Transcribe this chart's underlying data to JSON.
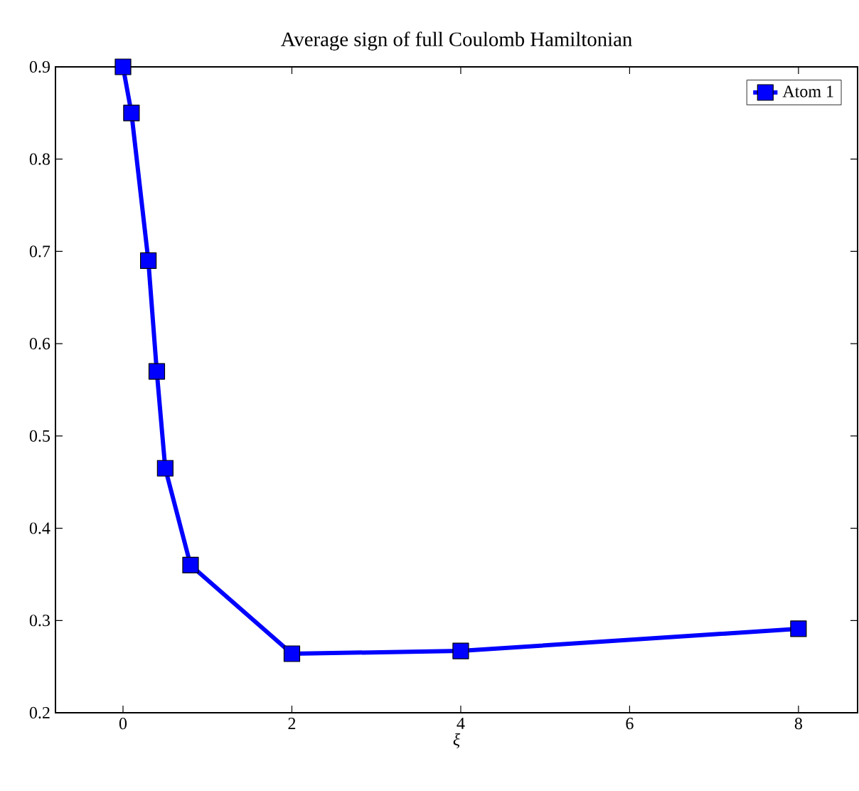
{
  "chart_data": {
    "type": "line",
    "title": "Average sign of full Coulomb Hamiltonian",
    "xlabel": "ξ",
    "x": [
      0,
      0.1,
      0.3,
      0.4,
      0.5,
      0.8,
      2,
      4,
      8
    ],
    "series": [
      {
        "name": "Atom 1",
        "color": "#0000ff",
        "values": [
          0.9,
          0.85,
          0.69,
          0.57,
          0.465,
          0.36,
          0.264,
          0.267,
          0.291
        ]
      }
    ],
    "xlim": [
      -0.8,
      8.7
    ],
    "ylim": [
      0.2,
      0.9
    ],
    "xticks": [
      0,
      2,
      4,
      6,
      8
    ],
    "yticks": [
      0.2,
      0.3,
      0.4,
      0.5,
      0.6,
      0.7,
      0.8,
      0.9
    ],
    "grid": false,
    "legend": "top right",
    "marker": "square",
    "line_style": "solid"
  }
}
